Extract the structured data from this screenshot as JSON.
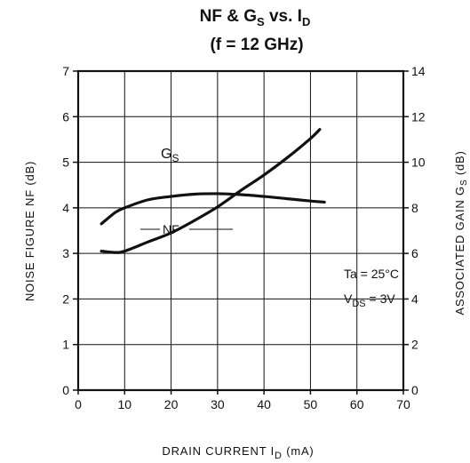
{
  "chart_data": {
    "type": "line",
    "title": {
      "line1": {
        "prefix": "NF & G",
        "sub1": "S",
        "mid": " vs. I",
        "sub2": "D"
      },
      "line2": "(f = 12 GHz)"
    },
    "xlabel": {
      "text": "DRAIN CURRENT  I",
      "sub": "D",
      "unit": " (mA)"
    },
    "ylabel_left": "NOISE FIGURE  NF (dB)",
    "ylabel_right": {
      "text": "ASSOCIATED  GAIN  G",
      "sub": "S",
      "unit": " (dB)"
    },
    "xlim": [
      0,
      70
    ],
    "ylim_left": [
      0,
      7
    ],
    "ylim_right": [
      0,
      14
    ],
    "x_ticks": [
      "0",
      "10",
      "20",
      "30",
      "40",
      "50",
      "60",
      "70"
    ],
    "y_left_ticks": [
      "0",
      "1",
      "2",
      "3",
      "4",
      "5",
      "6",
      "7"
    ],
    "y_right_ticks": [
      "0",
      "2",
      "4",
      "6",
      "8",
      "10",
      "12",
      "14"
    ],
    "grid": true,
    "series": [
      {
        "name": "NF",
        "axis": "left",
        "x": [
          5,
          8,
          10,
          15,
          20,
          25,
          30,
          35,
          40,
          45,
          50,
          52
        ],
        "y": [
          3.05,
          3.02,
          3.05,
          3.25,
          3.45,
          3.72,
          4.02,
          4.38,
          4.72,
          5.1,
          5.52,
          5.72
        ]
      },
      {
        "name": "GS",
        "label": {
          "text": "G",
          "sub": "S"
        },
        "axis": "right",
        "x": [
          5,
          8,
          10,
          15,
          20,
          25,
          30,
          35,
          40,
          45,
          50,
          53
        ],
        "y": [
          7.3,
          7.8,
          8.0,
          8.35,
          8.5,
          8.6,
          8.62,
          8.58,
          8.5,
          8.4,
          8.3,
          8.25
        ]
      }
    ],
    "annotations": {
      "ta": "Ta = 25°C",
      "vds": {
        "prefix": "V",
        "sub": "DS",
        "suffix": " = 3V"
      }
    }
  }
}
